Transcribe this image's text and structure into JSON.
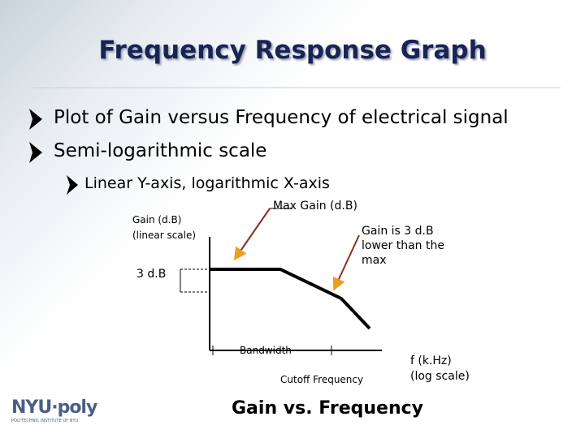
{
  "title": "Frequency Response Graph",
  "bullets": [
    "Plot of Gain versus Frequency of electrical signal",
    "Semi-logarithmic scale"
  ],
  "sub_bullets": [
    "Linear Y-axis, logarithmic X-axis"
  ],
  "diagram": {
    "max_gain": "Max Gain (d.B)",
    "y_label": [
      "Gain (d.B)",
      "(linear scale)"
    ],
    "drop_note": [
      "Gain is 3 d.B",
      "lower than the",
      "max"
    ],
    "drop": "3 d.B",
    "bandwidth": "Bandwidth",
    "cutoff": "Cutoff Frequency",
    "x_label": [
      "f  (k.Hz)",
      "(log scale)"
    ],
    "caption": "Gain vs. Frequency"
  },
  "footer": {
    "logo": "NYU·poly",
    "logo_sub": "POLYTECHNIC INSTITUTE OF NYU"
  }
}
